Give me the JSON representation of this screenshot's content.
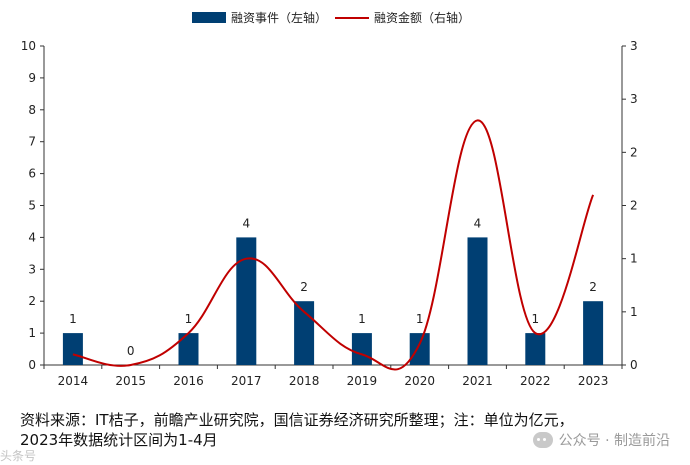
{
  "chart_data": {
    "type": "bar+line",
    "categories": [
      "2014",
      "2015",
      "2016",
      "2017",
      "2018",
      "2019",
      "2020",
      "2021",
      "2022",
      "2023"
    ],
    "series": [
      {
        "name": "融资事件（左轴）",
        "type": "bar",
        "axis": "left",
        "values": [
          1,
          0,
          1,
          4,
          2,
          1,
          1,
          4,
          1,
          2
        ],
        "data_labels": [
          "1",
          "0",
          "1",
          "4",
          "2",
          "1",
          "1",
          "4",
          "1",
          "2"
        ],
        "color": "#003f73"
      },
      {
        "name": "融资金额（右轴）",
        "type": "line",
        "axis": "right",
        "values": [
          0.1,
          0.0,
          0.3,
          1.0,
          0.5,
          0.1,
          0.2,
          2.3,
          0.3,
          1.6
        ],
        "color": "#c00000"
      }
    ],
    "left_axis": {
      "min": 0,
      "max": 10,
      "ticks": [
        "0",
        "1",
        "2",
        "3",
        "4",
        "5",
        "6",
        "7",
        "8",
        "9",
        "10"
      ]
    },
    "right_axis": {
      "min": 0,
      "max": 3,
      "ticks": [
        {
          "value": 0,
          "label": "0"
        },
        {
          "value": 0.5,
          "label": "1"
        },
        {
          "value": 1,
          "label": "1"
        },
        {
          "value": 1.5,
          "label": "2"
        },
        {
          "value": 2,
          "label": "2"
        },
        {
          "value": 2.5,
          "label": "3"
        },
        {
          "value": 3,
          "label": "3"
        }
      ]
    },
    "legend_position": "top",
    "grid": false
  },
  "footer": {
    "source_line1": "资料来源：IT桔子，前瞻产业研究院，国信证券经济研究所整理；注：单位为亿元，",
    "source_line2": "2023年数据统计区间为1-4月"
  },
  "watermark": {
    "text": "公众号 · 制造前沿"
  },
  "corner_mark": {
    "text": "头条号"
  }
}
